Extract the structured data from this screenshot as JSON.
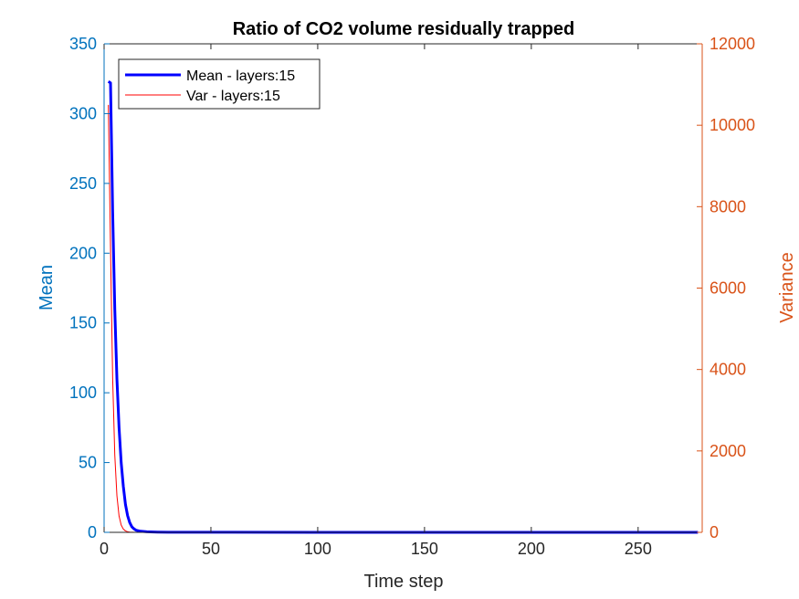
{
  "chart_data": {
    "type": "line",
    "title": "Ratio of CO2 volume residually trapped",
    "xlabel": "Time step",
    "ylabel_left": "Mean",
    "ylabel_right": "Variance",
    "xlim": [
      0,
      280
    ],
    "ylim_left": [
      0,
      350
    ],
    "ylim_right": [
      0,
      12000
    ],
    "x_ticks": [
      0,
      50,
      100,
      150,
      200,
      250
    ],
    "y_ticks_left": [
      0,
      50,
      100,
      150,
      200,
      250,
      300,
      350
    ],
    "y_ticks_right": [
      0,
      2000,
      4000,
      6000,
      8000,
      10000,
      12000
    ],
    "grid": false,
    "legend_position": "top-left",
    "series": [
      {
        "name": "Mean - layers:15",
        "axis": "left",
        "color": "#0000FF",
        "x": [
          2,
          3,
          4,
          5,
          6,
          7,
          8,
          9,
          10,
          11,
          12,
          13,
          14,
          15,
          17,
          20,
          25,
          30,
          50,
          100,
          150,
          200,
          250,
          278
        ],
        "y": [
          323,
          322,
          230,
          160,
          110,
          75,
          50,
          33,
          20,
          12,
          7,
          4,
          2.5,
          1.5,
          0.8,
          0.4,
          0.2,
          0.1,
          0.05,
          0.02,
          0.01,
          0.01,
          0.01,
          0.01
        ]
      },
      {
        "name": "Var - layers:15",
        "axis": "right",
        "color": "#FF0000",
        "x": [
          2,
          3,
          4,
          5,
          6,
          7,
          8,
          9,
          10,
          11,
          12,
          14,
          17,
          20,
          30,
          50,
          100,
          150,
          200,
          250,
          278
        ],
        "y": [
          10500,
          7000,
          3800,
          1900,
          900,
          400,
          180,
          80,
          35,
          15,
          7,
          3,
          1,
          0.5,
          0.2,
          0.1,
          0.05,
          0.05,
          0.05,
          0.05,
          0.05
        ]
      }
    ]
  }
}
